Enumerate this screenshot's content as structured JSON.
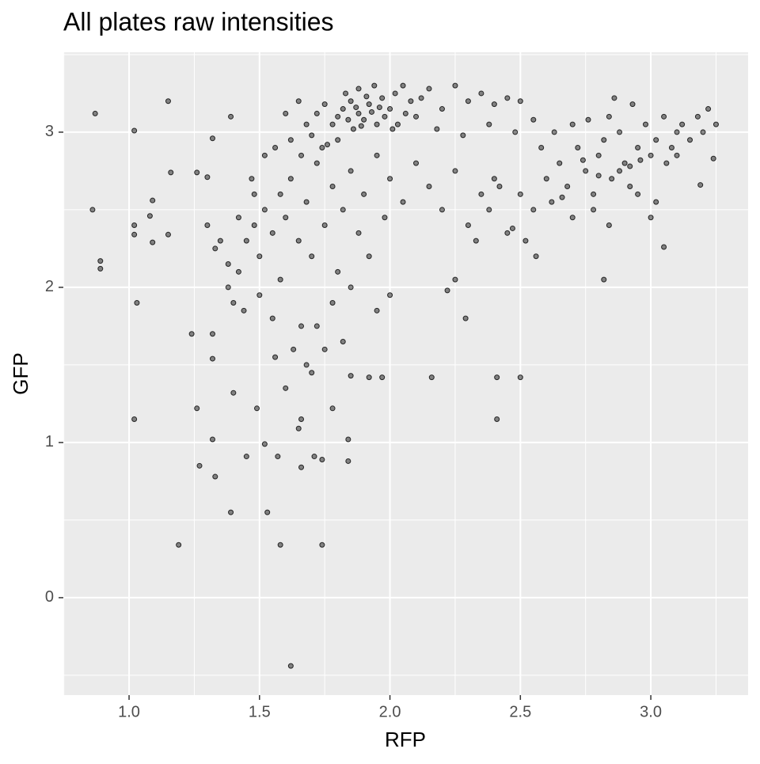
{
  "chart_data": {
    "type": "scatter",
    "title": "All plates raw intensities",
    "x_label": "RFP",
    "y_label": "GFP",
    "xlim": [
      0.748,
      3.373
    ],
    "ylim": [
      -0.628,
      3.515
    ],
    "xticks": [
      {
        "value": 1.0,
        "label": "1.0"
      },
      {
        "value": 1.5,
        "label": "1.5"
      },
      {
        "value": 2.0,
        "label": "2.0"
      },
      {
        "value": 2.5,
        "label": "2.5"
      },
      {
        "value": 3.0,
        "label": "3.0"
      }
    ],
    "yticks": [
      0,
      1,
      2,
      3
    ],
    "grid": true,
    "color": "#000000",
    "series": [
      {
        "name": "points",
        "x": [
          0.87,
          0.86,
          0.89,
          0.89,
          1.02,
          1.02,
          1.02,
          1.03,
          1.02,
          1.15,
          1.16,
          1.09,
          1.08,
          1.09,
          1.15,
          1.19,
          1.24,
          1.26,
          1.27,
          1.32,
          1.33,
          1.32,
          1.32,
          1.32,
          1.26,
          1.3,
          1.39,
          1.39,
          1.4,
          1.45,
          1.49,
          1.52,
          1.53,
          1.58,
          1.74,
          1.62,
          1.57,
          1.65,
          1.66,
          1.66,
          1.71,
          1.74,
          1.84,
          1.84,
          1.78,
          2.16,
          2.41,
          2.41,
          2.5,
          2.29,
          2.82,
          3.05,
          3.19,
          3.24,
          1.92,
          1.85,
          1.97,
          1.8,
          1.82,
          1.85,
          1.88,
          1.9,
          1.92,
          1.95,
          1.97,
          2.0,
          2.02,
          2.05,
          2.08,
          1.78,
          1.75,
          1.72,
          1.83,
          1.86,
          1.93,
          1.98,
          2.03,
          1.88,
          1.91,
          1.94,
          2.1,
          2.12,
          2.15,
          2.2,
          2.25,
          2.3,
          2.35,
          2.4,
          2.45,
          2.5,
          2.55,
          1.6,
          1.65,
          1.68,
          1.7,
          1.76,
          1.8,
          1.84,
          1.87,
          1.89,
          1.96,
          2.01,
          2.06,
          2.18,
          2.28,
          2.38,
          2.48,
          1.45,
          1.48,
          1.5,
          1.52,
          1.55,
          1.58,
          1.6,
          1.62,
          1.65,
          1.68,
          1.7,
          1.72,
          1.75,
          1.78,
          1.8,
          1.82,
          1.85,
          1.88,
          1.9,
          1.92,
          1.95,
          1.98,
          2.0,
          2.05,
          2.1,
          2.15,
          2.2,
          2.25,
          2.3,
          2.35,
          2.4,
          2.45,
          1.42,
          1.4,
          1.38,
          1.44,
          1.5,
          1.55,
          1.58,
          1.63,
          1.66,
          1.7,
          1.72,
          1.75,
          1.78,
          1.82,
          1.85,
          1.95,
          2.0,
          1.56,
          1.6,
          1.68,
          1.48,
          1.52,
          1.56,
          1.62,
          1.66,
          1.74,
          1.3,
          1.35,
          1.33,
          1.38,
          1.42,
          1.47,
          2.5,
          2.55,
          2.6,
          2.62,
          2.65,
          2.68,
          2.7,
          2.72,
          2.75,
          2.78,
          2.8,
          2.82,
          2.85,
          2.88,
          2.9,
          2.92,
          2.95,
          2.98,
          3.0,
          3.02,
          3.05,
          3.08,
          3.1,
          3.12,
          3.15,
          3.18,
          3.2,
          3.22,
          3.25,
          2.58,
          2.63,
          2.7,
          2.76,
          2.84,
          2.93,
          2.86,
          2.78,
          2.84,
          2.95,
          3.0,
          3.02,
          2.52,
          2.56,
          2.47,
          2.88,
          2.92,
          2.96,
          2.8,
          2.74,
          2.66,
          3.06,
          3.1,
          2.42,
          2.38,
          2.33,
          2.25,
          2.22
        ],
        "values": [
          3.12,
          2.5,
          2.17,
          2.12,
          3.01,
          2.4,
          2.34,
          1.9,
          1.15,
          3.2,
          2.74,
          2.56,
          2.46,
          2.29,
          2.34,
          0.34,
          1.7,
          1.22,
          0.85,
          1.02,
          0.78,
          1.54,
          1.7,
          2.96,
          2.74,
          2.71,
          3.1,
          0.55,
          1.32,
          0.91,
          1.22,
          0.99,
          0.55,
          0.34,
          0.34,
          -0.44,
          0.91,
          1.09,
          1.15,
          0.84,
          0.91,
          0.89,
          1.02,
          0.88,
          1.22,
          1.42,
          1.42,
          1.15,
          1.42,
          1.8,
          2.05,
          2.26,
          2.66,
          2.83,
          1.42,
          1.43,
          1.42,
          3.1,
          3.15,
          3.2,
          3.12,
          3.08,
          3.18,
          3.05,
          3.22,
          3.15,
          3.25,
          3.3,
          3.2,
          3.05,
          3.18,
          3.12,
          3.25,
          3.02,
          3.13,
          3.1,
          3.05,
          3.28,
          3.23,
          3.3,
          3.1,
          3.22,
          3.28,
          3.15,
          3.3,
          3.2,
          3.25,
          3.18,
          3.22,
          3.2,
          3.08,
          3.12,
          3.2,
          3.05,
          2.98,
          2.92,
          2.95,
          3.08,
          3.16,
          3.04,
          3.16,
          3.02,
          3.12,
          3.02,
          2.98,
          3.05,
          3.0,
          2.3,
          2.4,
          2.2,
          2.5,
          2.35,
          2.6,
          2.45,
          2.7,
          2.3,
          2.55,
          2.2,
          2.8,
          2.4,
          2.65,
          2.1,
          2.5,
          2.75,
          2.35,
          2.6,
          2.2,
          2.85,
          2.45,
          2.7,
          2.55,
          2.8,
          2.65,
          2.5,
          2.75,
          2.4,
          2.6,
          2.7,
          2.35,
          2.1,
          1.9,
          2.0,
          1.85,
          1.95,
          1.8,
          2.05,
          1.6,
          1.75,
          1.45,
          1.75,
          1.6,
          1.9,
          1.65,
          2.0,
          1.85,
          1.95,
          1.55,
          1.35,
          1.5,
          2.6,
          2.85,
          2.9,
          2.95,
          2.85,
          2.9,
          2.4,
          2.3,
          2.25,
          2.15,
          2.45,
          2.7,
          2.6,
          2.5,
          2.7,
          2.55,
          2.8,
          2.65,
          2.45,
          2.9,
          2.75,
          2.6,
          2.85,
          2.95,
          2.7,
          3.0,
          2.8,
          2.65,
          2.9,
          3.05,
          2.85,
          2.95,
          3.1,
          2.9,
          3.0,
          3.05,
          2.95,
          3.1,
          3.0,
          3.15,
          3.05,
          2.9,
          3.0,
          3.05,
          3.08,
          3.1,
          3.18,
          3.22,
          2.5,
          2.4,
          2.6,
          2.45,
          2.55,
          2.3,
          2.2,
          2.38,
          2.75,
          2.78,
          2.82,
          2.72,
          2.82,
          2.58,
          2.8,
          2.85,
          2.65,
          2.5,
          2.3,
          2.05,
          1.98
        ]
      }
    ]
  }
}
